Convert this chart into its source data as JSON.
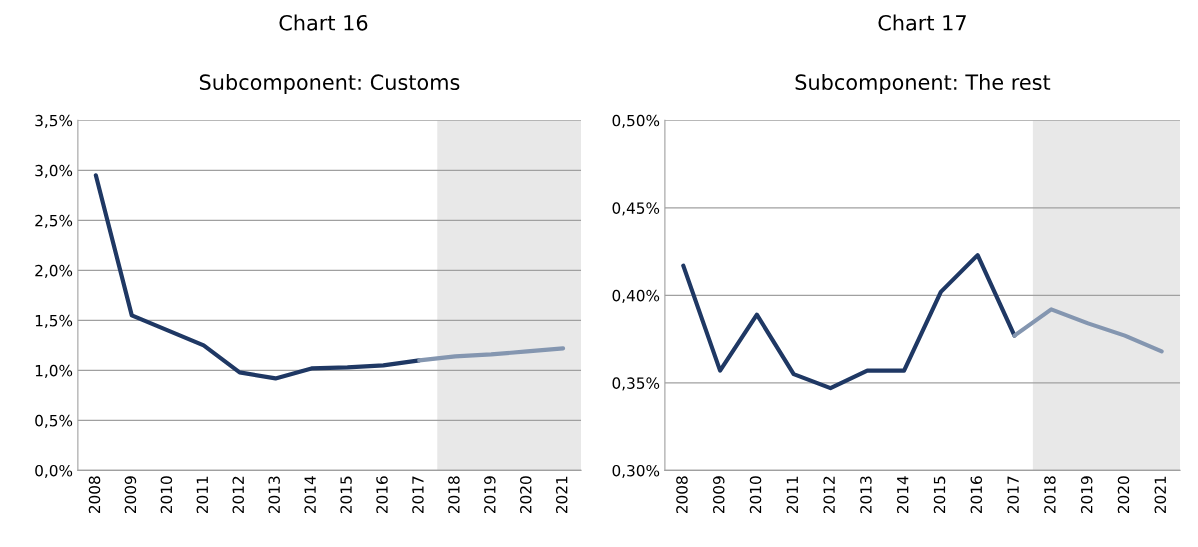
{
  "chart_data": [
    {
      "type": "line",
      "title": "Chart 16",
      "subtitle": "Subcomponent: Customs",
      "categories": [
        "2008",
        "2009",
        "2010",
        "2011",
        "2012",
        "2013",
        "2014",
        "2015",
        "2016",
        "2017",
        "2018",
        "2019",
        "2020",
        "2021"
      ],
      "series": [
        {
          "color": "#1f3864",
          "values": [
            2.95,
            1.55,
            1.4,
            1.25,
            0.98,
            0.92,
            1.02,
            1.03,
            1.05,
            1.1,
            null,
            null,
            null,
            null
          ]
        },
        {
          "color": "#8496b0",
          "values": [
            null,
            null,
            null,
            null,
            null,
            null,
            null,
            null,
            null,
            1.1,
            1.14,
            1.16,
            1.19,
            1.22
          ]
        }
      ],
      "ylim": [
        0,
        3.5
      ],
      "yticks": [
        {
          "value": 0,
          "label": "0,0%"
        },
        {
          "value": 0.5,
          "label": "0,5%"
        },
        {
          "value": 1,
          "label": "1,0%"
        },
        {
          "value": 1.5,
          "label": "1,5%"
        },
        {
          "value": 2,
          "label": "2,0%"
        },
        {
          "value": 2.5,
          "label": "2,5%"
        },
        {
          "value": 3,
          "label": "3,0%"
        },
        {
          "value": 3.5,
          "label": "3,5%"
        }
      ],
      "bands": [
        {
          "axis": "x",
          "from": "2018",
          "to": "2021",
          "color": "#e8e8e8"
        }
      ],
      "grid": "y",
      "legend": false,
      "line_style": "solid",
      "marker": "none"
    },
    {
      "type": "line",
      "title": "Chart 17",
      "subtitle": "Subcomponent: The rest",
      "categories": [
        "2008",
        "2009",
        "2010",
        "2011",
        "2012",
        "2013",
        "2014",
        "2015",
        "2016",
        "2017",
        "2018",
        "2019",
        "2020",
        "2021"
      ],
      "series": [
        {
          "color": "#1f3864",
          "values": [
            0.417,
            0.357,
            0.389,
            0.355,
            0.347,
            0.357,
            0.357,
            0.402,
            0.423,
            0.377,
            null,
            null,
            null,
            null
          ]
        },
        {
          "color": "#8496b0",
          "values": [
            null,
            null,
            null,
            null,
            null,
            null,
            null,
            null,
            null,
            0.377,
            0.392,
            0.384,
            0.377,
            0.368
          ]
        }
      ],
      "ylim": [
        0.3,
        0.5
      ],
      "yticks": [
        {
          "value": 0.3,
          "label": "0,30%"
        },
        {
          "value": 0.35,
          "label": "0,35%"
        },
        {
          "value": 0.4,
          "label": "0,40%"
        },
        {
          "value": 0.45,
          "label": "0,45%"
        },
        {
          "value": 0.5,
          "label": "0,50%"
        }
      ],
      "bands": [
        {
          "axis": "x",
          "from": "2018",
          "to": "2021",
          "color": "#e8e8e8"
        }
      ],
      "grid": "y",
      "legend": false,
      "line_style": "solid",
      "marker": "none"
    }
  ]
}
